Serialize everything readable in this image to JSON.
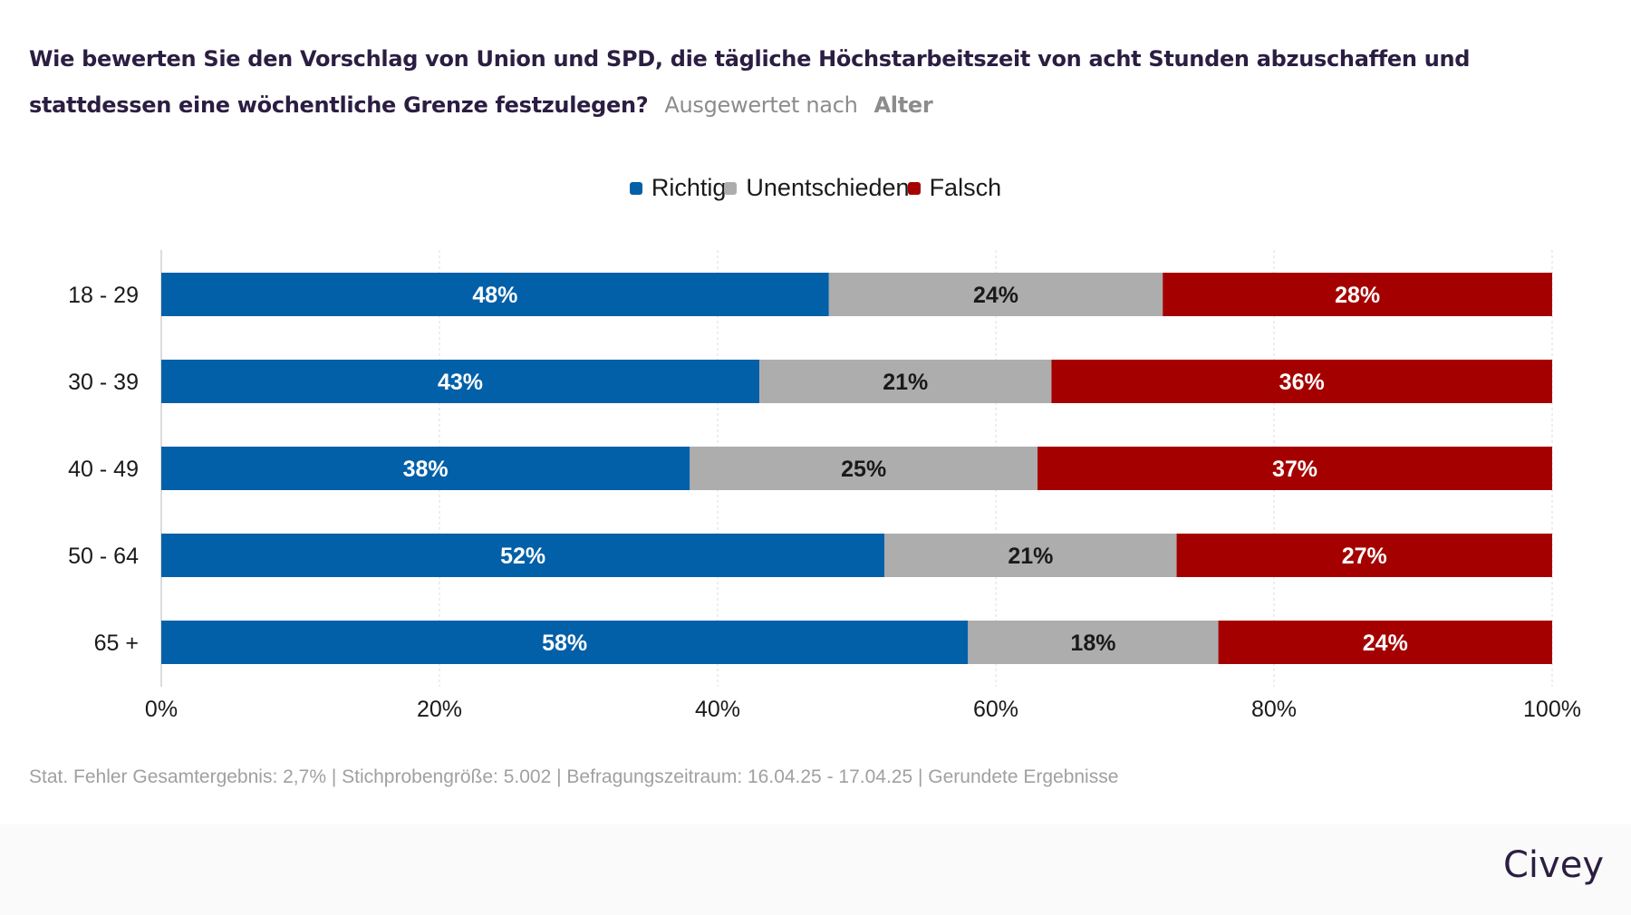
{
  "header": {
    "question": "Wie bewerten Sie den Vorschlag von Union und SPD, die tägliche Höchstarbeitszeit von acht Stunden abzuschaffen und stattdessen eine wöchentliche Grenze festzulegen?",
    "evaluated_by_label": "Ausgewertet nach",
    "evaluated_by_value": "Alter"
  },
  "colors": {
    "richtig": "#0260a8",
    "unentschieden": "#adadad",
    "falsch": "#a50000",
    "title": "#2b1e42"
  },
  "chart_data": {
    "type": "bar",
    "orientation": "horizontal",
    "stacked": true,
    "title": "Wie bewerten Sie den Vorschlag von Union und SPD, die tägliche Höchstarbeitszeit von acht Stunden abzuschaffen und stattdessen eine wöchentliche Grenze festzulegen?",
    "subtitle": "Ausgewertet nach Alter",
    "categories": [
      "18 - 29",
      "30 - 39",
      "40 - 49",
      "50 - 64",
      "65 +"
    ],
    "series": [
      {
        "name": "Richtig",
        "color": "#0260a8",
        "label_color": "#ffffff",
        "values": [
          48,
          43,
          38,
          52,
          58
        ]
      },
      {
        "name": "Unentschieden",
        "color": "#adadad",
        "label_color": "#1a1a1a",
        "values": [
          24,
          21,
          25,
          21,
          18
        ]
      },
      {
        "name": "Falsch",
        "color": "#a50000",
        "label_color": "#ffffff",
        "values": [
          28,
          36,
          37,
          27,
          24
        ]
      }
    ],
    "xlim": [
      0,
      100
    ],
    "x_ticks": [
      0,
      20,
      40,
      60,
      80,
      100
    ],
    "x_tick_labels": [
      "0%",
      "20%",
      "40%",
      "60%",
      "80%",
      "100%"
    ],
    "xlabel": "",
    "ylabel": "",
    "value_suffix": "%",
    "grid": true,
    "legend_position": "top-center"
  },
  "legend": [
    {
      "label": "Richtig",
      "color": "#0260a8"
    },
    {
      "label": "Unentschieden",
      "color": "#adadad"
    },
    {
      "label": "Falsch",
      "color": "#a50000"
    }
  ],
  "footer": {
    "note": "Stat. Fehler Gesamtergebnis: 2,7% | Stichprobengröße: 5.002 | Befragungszeitraum: 16.04.25 - 17.04.25 | Gerundete Ergebnisse",
    "brand": "Civey"
  }
}
